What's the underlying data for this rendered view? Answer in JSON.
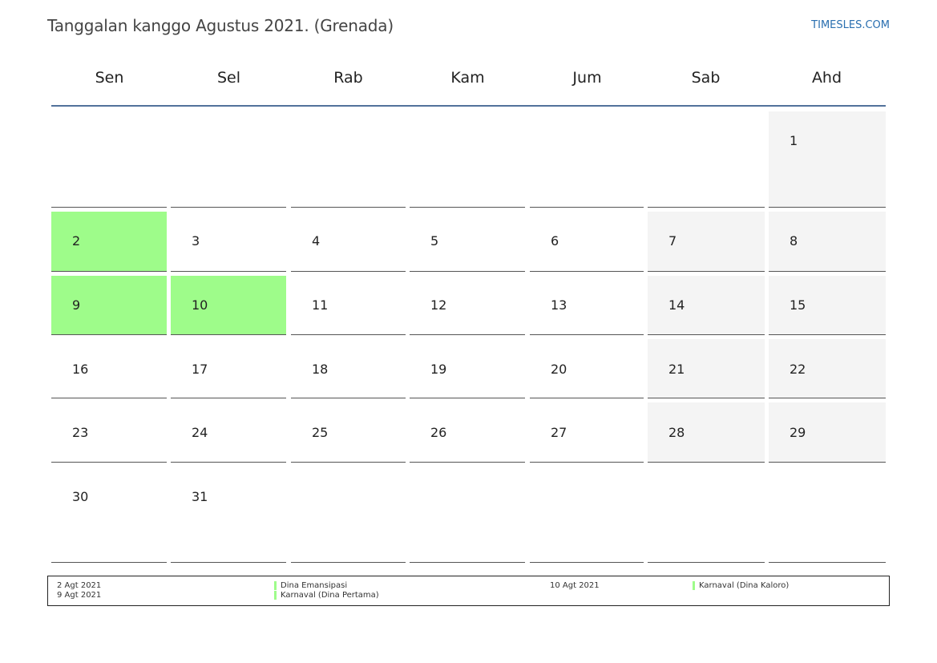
{
  "header": {
    "title": "Tanggalan kanggo Agustus 2021. (Grenada)",
    "brand": "TIMESLES.COM"
  },
  "calendar": {
    "weekdays": [
      "Sen",
      "Sel",
      "Rab",
      "Kam",
      "Jum",
      "Sab",
      "Ahd"
    ],
    "weeks": [
      [
        "",
        "",
        "",
        "",
        "",
        "",
        "1"
      ],
      [
        "2",
        "3",
        "4",
        "5",
        "6",
        "7",
        "8"
      ],
      [
        "9",
        "10",
        "11",
        "12",
        "13",
        "14",
        "15"
      ],
      [
        "16",
        "17",
        "18",
        "19",
        "20",
        "21",
        "22"
      ],
      [
        "23",
        "24",
        "25",
        "26",
        "27",
        "28",
        "29"
      ],
      [
        "30",
        "31",
        "",
        "",
        "",
        "",
        ""
      ]
    ],
    "holiday_days": [
      "2",
      "9",
      "10"
    ]
  },
  "legend": {
    "col1_dates": [
      "2 Agt 2021",
      "9 Agt 2021"
    ],
    "col1_names": [
      "Dina Emansipasi",
      "Karnaval (Dina Pertama)"
    ],
    "col2_dates": [
      "10 Agt 2021"
    ],
    "col2_names": [
      "Karnaval (Dina Kaloro)"
    ]
  },
  "colors": {
    "holiday": "#9efc8a",
    "weekend": "#f4f4f4",
    "header_line": "#52729b",
    "brand": "#2a6fb0"
  }
}
